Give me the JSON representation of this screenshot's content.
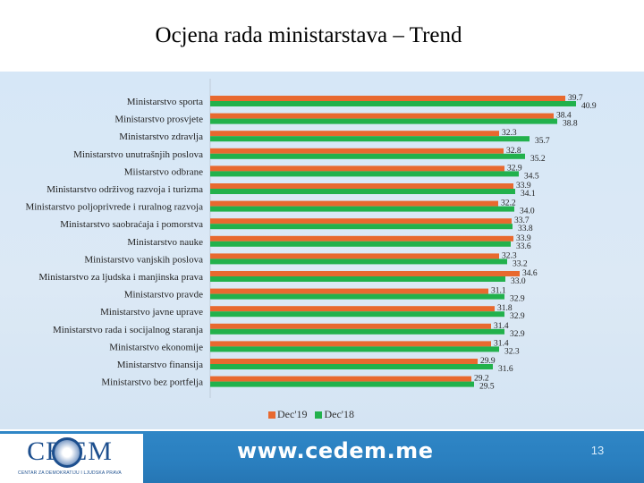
{
  "slide": {
    "title": "Ocjena rada ministarstava – Trend",
    "url": "www.cedem.me",
    "page_number": "13"
  },
  "logo": {
    "text": "CE EM",
    "subtitle": "CENTAR ZA DEMOKRATIJU I LJUDSKA PRAVA"
  },
  "colors": {
    "dec19": "#e8692f",
    "dec18": "#22b14c",
    "footer": "#2a7fbf"
  },
  "chart_data": {
    "type": "bar",
    "orientation": "horizontal",
    "title": "",
    "xlabel": "",
    "ylabel": "",
    "categories": [
      "Ministarstvo sporta",
      "Ministarstvo prosvjete",
      "Ministarstvo zdravlja",
      "Ministarstvo unutrašnjih poslova",
      "Miistarstvo odbrane",
      "Ministarstvo održivog razvoja i turizma",
      "Ministarstvo poljoprivrede i ruralnog razvoja",
      "Ministarstvo saobraćaja i pomorstva",
      "Ministarstvo nauke",
      "Ministarstvo vanjskih poslova",
      "Ministarstvo za ljudska i manjinska prava",
      "Ministarstvo pravde",
      "Ministarstvo javne uprave",
      "Ministarstvo rada i socijalnog staranja",
      "Ministarstvo ekonomije",
      "Ministarstvo finansija",
      "Ministarstvo bez portfelja"
    ],
    "series": [
      {
        "name": "Dec'19",
        "color": "#e8692f",
        "values": [
          39.7,
          38.4,
          32.3,
          32.8,
          32.9,
          33.9,
          32.2,
          33.7,
          33.9,
          32.3,
          34.6,
          31.1,
          31.8,
          31.4,
          31.4,
          29.9,
          29.2
        ]
      },
      {
        "name": "Dec'18",
        "color": "#22b14c",
        "values": [
          40.9,
          38.8,
          35.7,
          35.2,
          34.5,
          34.1,
          34.0,
          33.8,
          33.6,
          33.2,
          33.0,
          32.9,
          32.9,
          32.9,
          32.3,
          31.6,
          29.5
        ]
      }
    ],
    "xlim": [
      0,
      42
    ],
    "grid": false,
    "legend": "bottom"
  }
}
